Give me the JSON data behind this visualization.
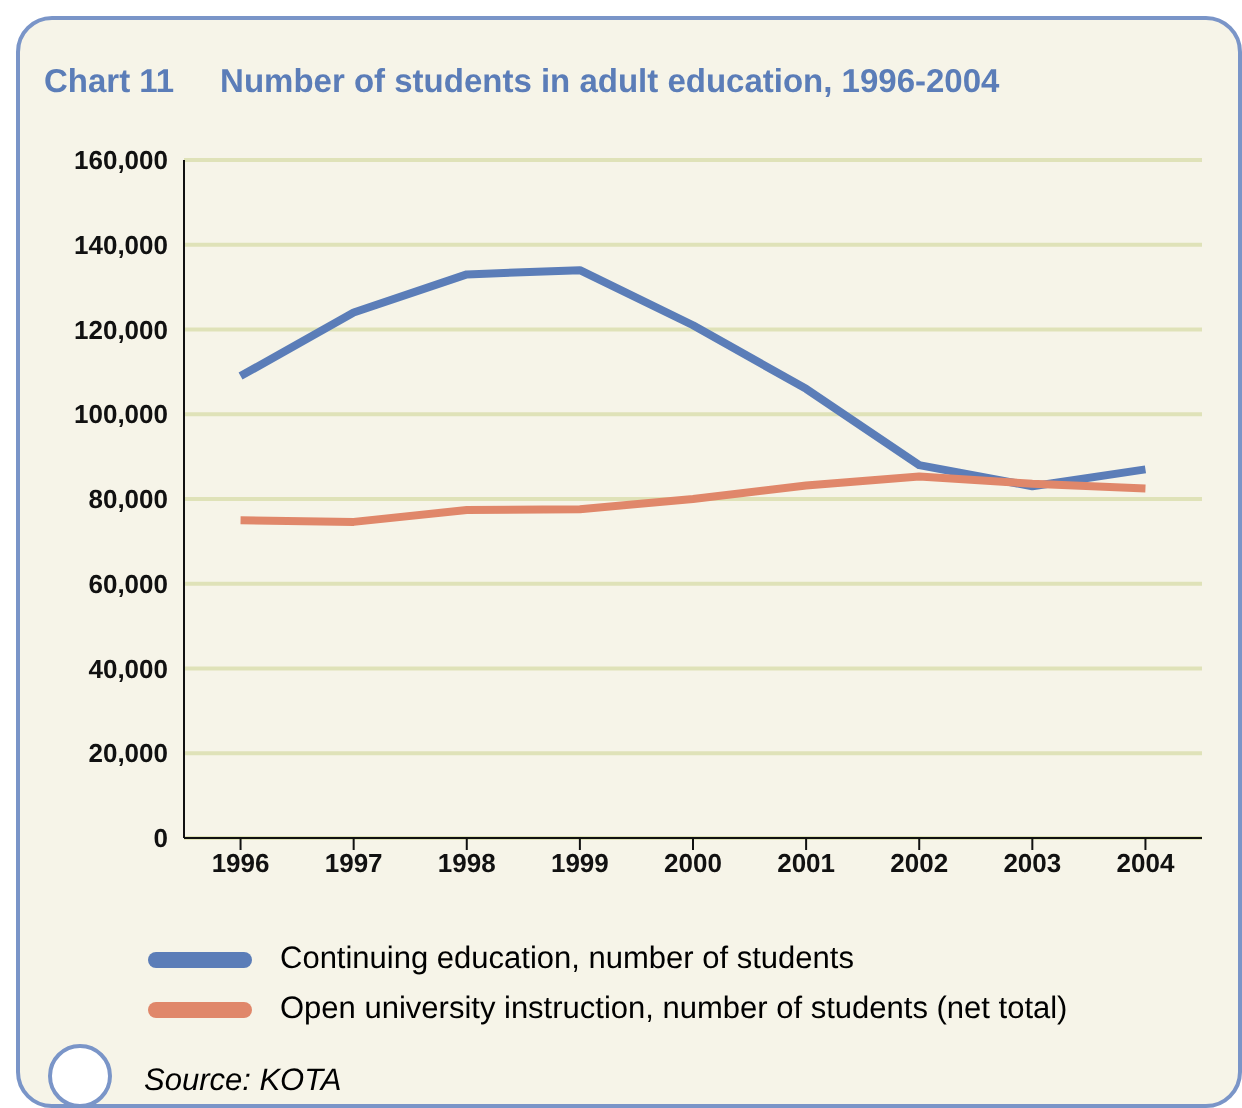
{
  "chart_data": {
    "type": "line",
    "title": "Chart 11     Number of students in adult education, 1996-2004",
    "categories": [
      "1996",
      "1997",
      "1998",
      "1999",
      "2000",
      "2001",
      "2002",
      "2003",
      "2004"
    ],
    "series": [
      {
        "name": "Continuing education, number of students",
        "color": "#5b7db8",
        "values": [
          109000,
          124000,
          133000,
          134000,
          121000,
          106000,
          88000,
          83000,
          87000
        ]
      },
      {
        "name": "Open university instruction, number of students (net total)",
        "color": "#e0876a",
        "values": [
          75000,
          74600,
          77400,
          77600,
          80000,
          83200,
          85300,
          83600,
          82500
        ]
      }
    ],
    "ylim": [
      0,
      160000
    ],
    "yticks": [
      0,
      {
        "value": 20000,
        "label": "20,000"
      },
      {
        "value": 40000,
        "label": "40,000"
      },
      {
        "value": 60000,
        "label": "60,000"
      },
      {
        "value": 80000,
        "label": "80,000"
      },
      {
        "value": 100000,
        "label": "100,000"
      },
      {
        "value": 120000,
        "label": "120,000"
      },
      {
        "value": 140000,
        "label": "140,000"
      },
      {
        "value": 160000,
        "label": "160,000"
      }
    ],
    "grid": "y",
    "legend": "bottom",
    "marker": "none",
    "line_style": "solid",
    "annotations": [
      "Source: KOTA"
    ]
  }
}
